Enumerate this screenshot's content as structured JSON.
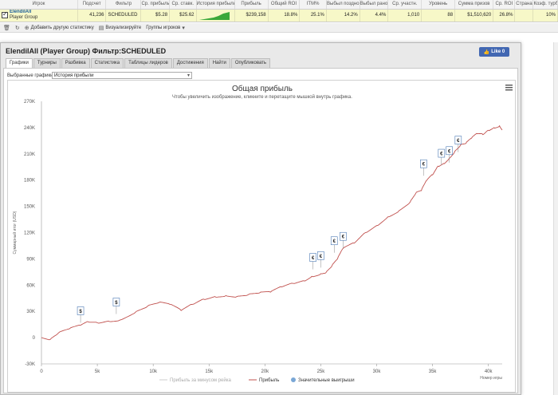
{
  "stats": {
    "headers": [
      "Игрок",
      "Подсчет",
      "Фильтр",
      "Ср. прибыль",
      "Ср. ставк.",
      "История прибыль",
      "Прибыль",
      "Общий ROI",
      "ITM%",
      "Выбыл поздно",
      "Выбыл рано",
      "Ср. участн.",
      "Уровень",
      "Сумма призов",
      "Ср. ROI",
      "Страна",
      "Коэф. турб."
    ],
    "row": {
      "player_name": "ElendilAll",
      "player_group": "Player Group",
      "count": "41,236",
      "filter": "SCHEDULED",
      "avg_profit": "$5.28",
      "avg_stake": "$25.62",
      "profit": "$239,158",
      "total_roi": "18.8%",
      "itm": "25.1%",
      "late_bust": "14.2%",
      "early_bust": "4.4%",
      "avg_entrants": "1,010",
      "level": "88",
      "prize_sum": "$1,510,620",
      "avg_roi": "26.8%",
      "country": "",
      "turbo_coef": "10%"
    }
  },
  "toolbar": {
    "add_stat": "Добавить другую статистику",
    "visualize": "Визуализируйте",
    "groups": "Группы игроков"
  },
  "dialog": {
    "title": "ElendilAll (Player Group) Фильтр:SCHEDULED",
    "like_label": "Like 0",
    "tabs": [
      "Графики",
      "Турниры",
      "Разбивка",
      "Статистика",
      "Таблицы лидеров",
      "Достижения",
      "Найти",
      "Опубликовать"
    ],
    "active_tab": 0,
    "select_label": "Выбранные графики:",
    "select_value": "История прибыли"
  },
  "colors": {
    "line": "#c0504d",
    "marker_fill": "#ffffff",
    "marker_border": "#4b79b4",
    "fb": "#4267b2",
    "row": "#f7f8c8"
  },
  "chart_data": {
    "type": "line",
    "title": "Общая прибыль",
    "subtitle": "Чтобы увеличить изображение, кликните и перетащите мышкой внутрь графика.",
    "xlabel": "Номер игры",
    "ylabel": "Суммарный итог (USD)",
    "xlim": [
      0,
      41236
    ],
    "ylim": [
      -30000,
      270000
    ],
    "x_ticks": [
      "0",
      "5k",
      "10k",
      "15k",
      "20k",
      "25k",
      "30k",
      "35k",
      "40k"
    ],
    "y_ticks": [
      "-30K",
      "0",
      "30K",
      "60K",
      "90K",
      "120K",
      "150K",
      "180K",
      "210K",
      "240K",
      "270K"
    ],
    "grid": false,
    "legend": [
      "Прибыль за минусом рейка",
      "Прибыль",
      "Значительные выигрыши"
    ],
    "legend_position": "bottom",
    "series": [
      {
        "name": "Прибыль",
        "x": [
          0,
          800,
          1500,
          2500,
          3500,
          4200,
          5000,
          6000,
          7000,
          8500,
          9500,
          10500,
          11500,
          12500,
          13500,
          14500,
          15500,
          16500,
          17500,
          18500,
          19500,
          20500,
          21500,
          22500,
          23500,
          24200,
          25000,
          25500,
          26000,
          26500,
          27000,
          28000,
          29000,
          30000,
          31000,
          32000,
          33000,
          33500,
          34000,
          34500,
          35000,
          35500,
          36000,
          36500,
          37000,
          37500,
          38000,
          38500,
          39000,
          39500,
          40000,
          40500,
          41000,
          41236
        ],
        "y": [
          0,
          -2000,
          5000,
          10000,
          14000,
          18000,
          17000,
          19000,
          20000,
          30000,
          36000,
          40000,
          38000,
          31000,
          38000,
          44000,
          47000,
          48000,
          47000,
          49000,
          51000,
          52000,
          58000,
          62000,
          65000,
          70000,
          73000,
          75000,
          82000,
          90000,
          102000,
          108000,
          120000,
          128000,
          138000,
          145000,
          155000,
          165000,
          168000,
          180000,
          186000,
          196000,
          199000,
          205000,
          213000,
          220000,
          222000,
          228000,
          233000,
          232000,
          237000,
          240000,
          242000,
          238000
        ]
      }
    ],
    "markers": [
      {
        "x": 3500,
        "y": 17000,
        "label": "$"
      },
      {
        "x": 6700,
        "y": 27000,
        "label": "$"
      },
      {
        "x": 24300,
        "y": 78000,
        "label": "€"
      },
      {
        "x": 25000,
        "y": 80000,
        "label": "€"
      },
      {
        "x": 26200,
        "y": 97000,
        "label": "€"
      },
      {
        "x": 27000,
        "y": 102000,
        "label": "€"
      },
      {
        "x": 34200,
        "y": 185000,
        "label": "€"
      },
      {
        "x": 35800,
        "y": 197000,
        "label": "€"
      },
      {
        "x": 36500,
        "y": 200000,
        "label": "€"
      },
      {
        "x": 37300,
        "y": 212000,
        "label": "€"
      }
    ]
  }
}
